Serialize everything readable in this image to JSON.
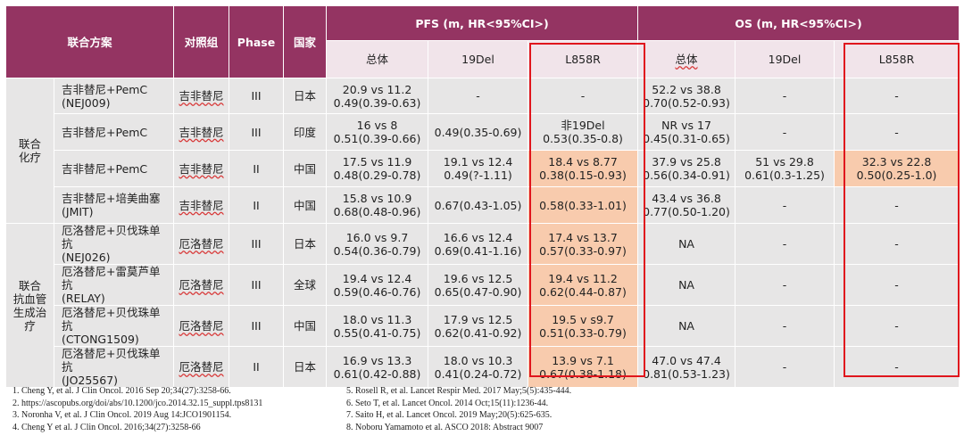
{
  "header": {
    "combo": "联合方案",
    "control": "对照组",
    "phase": "Phase",
    "country": "国家",
    "pfs": "PFS (m, HR<95%CI>)",
    "os": "OS (m, HR<95%CI>)",
    "sub": [
      "总体",
      "19Del",
      "L858R",
      "总体",
      "19Del",
      "L858R"
    ]
  },
  "groups": [
    "联合\n化疗",
    "联合\n抗血管\n生成治\n疗"
  ],
  "rows": [
    {
      "name": "吉非替尼+PemC\n(NEJ009)",
      "control": "吉非替尼",
      "phase": "III",
      "country": "日本",
      "pfs_all": "20.9 vs 11.2\n0.49(0.39-0.63)",
      "pfs_19": "-",
      "pfs_l": "-",
      "os_all": "52.2 vs 38.8\n0.70(0.52-0.93)",
      "os_19": "-",
      "os_l": "-"
    },
    {
      "name": "吉非替尼+PemC",
      "control": "吉非替尼",
      "phase": "III",
      "country": "印度",
      "pfs_all": "16 vs 8\n0.51(0.39-0.66)",
      "pfs_19": "0.49(0.35-0.69)",
      "pfs_l": "非19Del\n0.53(0.35-0.8)",
      "os_all": "NR vs 17\n0.45(0.31-0.65)",
      "os_19": "-",
      "os_l": "-"
    },
    {
      "name": "吉非替尼+PemC",
      "control": "吉非替尼",
      "phase": "II",
      "country": "中国",
      "pfs_all": "17.5 vs 11.9\n0.48(0.29-0.78)",
      "pfs_19": "19.1 vs 12.4\n0.49(?-1.11)",
      "pfs_l": "18.4 vs 8.77\n0.38(0.15-0.93)",
      "os_all": "37.9 vs 25.8\n0.56(0.34-0.91)",
      "os_19": "51 vs 29.8\n0.61(0.3-1.25)",
      "os_l": "32.3 vs 22.8\n0.50(0.25-1.0)"
    },
    {
      "name": "吉非替尼+培美曲塞\n(JMIT)",
      "control": "吉非替尼",
      "phase": "II",
      "country": "中国",
      "pfs_all": "15.8 vs 10.9\n0.68(0.48-0.96)",
      "pfs_19": "0.67(0.43-1.05)",
      "pfs_l": "0.58(0.33-1.01)",
      "os_all": "43.4 vs 36.8\n0.77(0.50-1.20)",
      "os_19": "-",
      "os_l": "-"
    },
    {
      "name": "厄洛替尼+贝伐珠单抗\n(NEJ026)",
      "control": "厄洛替尼",
      "phase": "III",
      "country": "日本",
      "pfs_all": "16.0 vs 9.7\n0.54(0.36-0.79)",
      "pfs_19": "16.6 vs 12.4\n0.69(0.41-1.16)",
      "pfs_l": "17.4 vs 13.7\n0.57(0.33-0.97)",
      "os_all": "NA",
      "os_19": "-",
      "os_l": "-"
    },
    {
      "name": "厄洛替尼+雷莫芦单抗\n(RELAY)",
      "control": "厄洛替尼",
      "phase": "III",
      "country": "全球",
      "pfs_all": "19.4 vs 12.4\n0.59(0.46-0.76)",
      "pfs_19": "19.6 vs 12.5\n0.65(0.47-0.90)",
      "pfs_l": "19.4 vs 11.2\n0.62(0.44-0.87)",
      "os_all": "NA",
      "os_19": "-",
      "os_l": "-"
    },
    {
      "name": "厄洛替尼+贝伐珠单抗\n(CTONG1509)",
      "control": "厄洛替尼",
      "phase": "III",
      "country": "中国",
      "pfs_all": "18.0 vs 11.3\n0.55(0.41-0.75)",
      "pfs_19": "17.9 vs 12.5\n0.62(0.41-0.92)",
      "pfs_l": "19.5 v s9.7\n0.51(0.33-0.79)",
      "os_all": "NA",
      "os_19": "-",
      "os_l": "-"
    },
    {
      "name": "厄洛替尼+贝伐珠单抗\n(JO25567)",
      "control": "厄洛替尼",
      "phase": "II",
      "country": "日本",
      "pfs_all": "16.9 vs 13.3\n0.61(0.42-0.88)",
      "pfs_19": "18.0 vs 10.3\n0.41(0.24-0.72)",
      "pfs_l": "13.9 vs 7.1\n0.67(0.38-1.18)",
      "os_all": "47.0 vs 47.4\n0.81(0.53-1.23)",
      "os_19": "-",
      "os_l": "-"
    }
  ],
  "refs_left": [
    "1. Cheng Y, et al. J Clin Oncol. 2016 Sep 20;34(27):3258-66.",
    "2. https://ascopubs.org/doi/abs/10.1200/jco.2014.32.15_suppl.tps8131",
    "3. Noronha V, et al. J Clin Oncol. 2019 Aug 14:JCO1901154.",
    "4. Cheng Y et al. J Clin Oncol. 2016;34(27):3258-66"
  ],
  "refs_right": [
    "5. Rosell R, et al. Lancet Respir Med. 2017 May;5(5):435-444.",
    "6. Seto T, et al. Lancet Oncol. 2014 Oct;15(11):1236-44.",
    "7. Saito H, et al. Lancet Oncol. 2019 May;20(5):625-635.",
    "8. Noboru Yamamoto et al. ASCO 2018: Abstract 9007"
  ],
  "colors": {
    "header": "#943462",
    "subheader": "#f1e4ea",
    "cell": "#e7e6e6",
    "highlight": "#f8cbad",
    "box": "#e0161d"
  }
}
